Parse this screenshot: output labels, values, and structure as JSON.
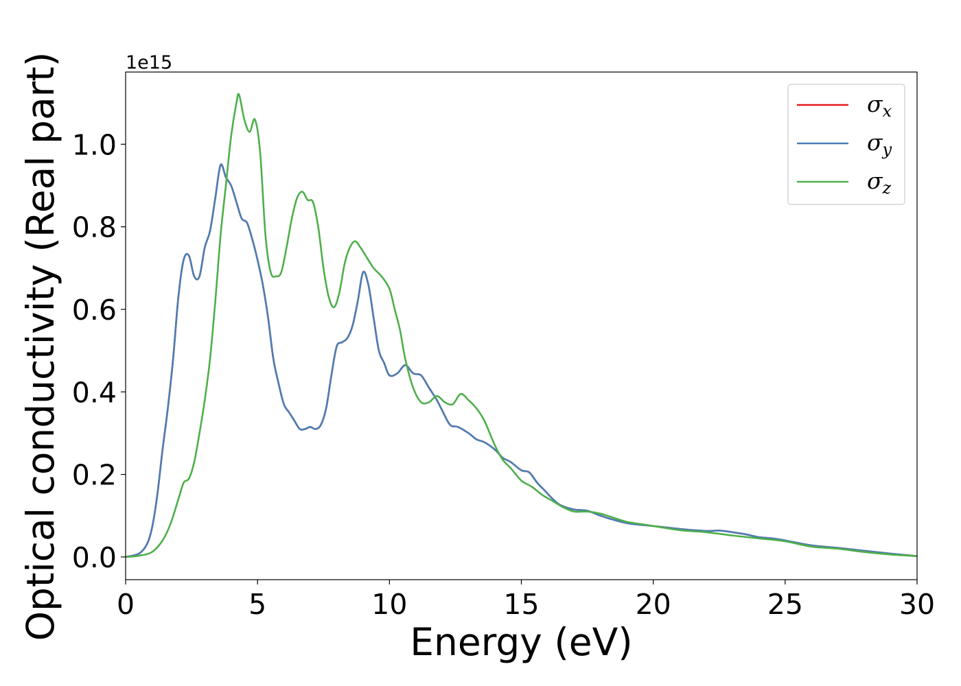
{
  "chart_data": {
    "type": "line",
    "xlabel": "Energy (eV)",
    "ylabel": "Optical conductivity (Real part)",
    "offset_text": "1e15",
    "xlim": [
      0,
      30
    ],
    "ylim": [
      -0.055,
      1.175
    ],
    "xticks": [
      0,
      5,
      10,
      15,
      20,
      25,
      30
    ],
    "xtick_labels": [
      "0",
      "5",
      "10",
      "15",
      "20",
      "25",
      "30"
    ],
    "yticks": [
      0.0,
      0.2,
      0.4,
      0.6,
      0.8,
      1.0
    ],
    "ytick_labels": [
      "0.0",
      "0.2",
      "0.4",
      "0.6",
      "0.8",
      "1.0"
    ],
    "grid": false,
    "legend_position": "upper right",
    "series": [
      {
        "name": "σx",
        "symbol": "σ",
        "subscript": "x",
        "color": "#e41a1c",
        "x": [
          0,
          0.5,
          0.8,
          1.0,
          1.2,
          1.4,
          1.6,
          1.8,
          2.0,
          2.2,
          2.4,
          2.6,
          2.8,
          3.0,
          3.2,
          3.4,
          3.6,
          3.8,
          4.0,
          4.2,
          4.4,
          4.6,
          4.8,
          5.0,
          5.2,
          5.4,
          5.6,
          5.8,
          6.0,
          6.2,
          6.4,
          6.6,
          6.8,
          7.0,
          7.2,
          7.4,
          7.6,
          7.8,
          8.0,
          8.2,
          8.4,
          8.6,
          8.8,
          9.0,
          9.2,
          9.4,
          9.6,
          9.8,
          10.0,
          10.3,
          10.6,
          10.9,
          11.2,
          11.5,
          11.8,
          12.0,
          12.3,
          12.6,
          13.0,
          13.3,
          13.6,
          14.0,
          14.3,
          14.6,
          15.0,
          15.3,
          15.6,
          15.9,
          16.2,
          16.5,
          17.0,
          17.5,
          18.0,
          18.5,
          19.0,
          19.5,
          20.0,
          21.0,
          22.0,
          22.5,
          23.0,
          23.5,
          24.0,
          24.5,
          25.0,
          26.0,
          27.0,
          28.0,
          29.0,
          30.0
        ],
        "values": [
          0.0,
          0.008,
          0.03,
          0.07,
          0.15,
          0.26,
          0.36,
          0.48,
          0.63,
          0.72,
          0.73,
          0.68,
          0.68,
          0.75,
          0.79,
          0.87,
          0.95,
          0.92,
          0.9,
          0.86,
          0.82,
          0.81,
          0.77,
          0.72,
          0.66,
          0.58,
          0.48,
          0.42,
          0.37,
          0.35,
          0.33,
          0.31,
          0.31,
          0.315,
          0.31,
          0.32,
          0.36,
          0.44,
          0.51,
          0.52,
          0.53,
          0.56,
          0.62,
          0.69,
          0.66,
          0.58,
          0.5,
          0.47,
          0.44,
          0.445,
          0.465,
          0.445,
          0.44,
          0.41,
          0.38,
          0.355,
          0.32,
          0.315,
          0.3,
          0.285,
          0.278,
          0.26,
          0.24,
          0.23,
          0.21,
          0.205,
          0.18,
          0.16,
          0.14,
          0.125,
          0.115,
          0.112,
          0.1,
          0.09,
          0.082,
          0.078,
          0.075,
          0.068,
          0.063,
          0.064,
          0.06,
          0.055,
          0.048,
          0.045,
          0.04,
          0.028,
          0.022,
          0.015,
          0.008,
          0.002
        ]
      },
      {
        "name": "σy",
        "symbol": "σ",
        "subscript": "y",
        "color": "#4a7fb5",
        "x": [
          0,
          0.5,
          0.8,
          1.0,
          1.2,
          1.4,
          1.6,
          1.8,
          2.0,
          2.2,
          2.4,
          2.6,
          2.8,
          3.0,
          3.2,
          3.4,
          3.6,
          3.8,
          4.0,
          4.2,
          4.4,
          4.6,
          4.8,
          5.0,
          5.2,
          5.4,
          5.6,
          5.8,
          6.0,
          6.2,
          6.4,
          6.6,
          6.8,
          7.0,
          7.2,
          7.4,
          7.6,
          7.8,
          8.0,
          8.2,
          8.4,
          8.6,
          8.8,
          9.0,
          9.2,
          9.4,
          9.6,
          9.8,
          10.0,
          10.3,
          10.6,
          10.9,
          11.2,
          11.5,
          11.8,
          12.0,
          12.3,
          12.6,
          13.0,
          13.3,
          13.6,
          14.0,
          14.3,
          14.6,
          15.0,
          15.3,
          15.6,
          15.9,
          16.2,
          16.5,
          17.0,
          17.5,
          18.0,
          18.5,
          19.0,
          19.5,
          20.0,
          21.0,
          22.0,
          22.5,
          23.0,
          23.5,
          24.0,
          24.5,
          25.0,
          26.0,
          27.0,
          28.0,
          29.0,
          30.0
        ],
        "values": [
          0.0,
          0.008,
          0.03,
          0.07,
          0.15,
          0.26,
          0.36,
          0.48,
          0.63,
          0.72,
          0.73,
          0.68,
          0.68,
          0.75,
          0.79,
          0.87,
          0.95,
          0.92,
          0.9,
          0.86,
          0.82,
          0.81,
          0.77,
          0.72,
          0.66,
          0.58,
          0.48,
          0.42,
          0.37,
          0.35,
          0.33,
          0.31,
          0.31,
          0.315,
          0.31,
          0.32,
          0.36,
          0.44,
          0.51,
          0.52,
          0.53,
          0.56,
          0.62,
          0.69,
          0.66,
          0.58,
          0.5,
          0.47,
          0.44,
          0.445,
          0.465,
          0.445,
          0.44,
          0.41,
          0.38,
          0.355,
          0.32,
          0.315,
          0.3,
          0.285,
          0.278,
          0.26,
          0.24,
          0.23,
          0.21,
          0.205,
          0.18,
          0.16,
          0.14,
          0.125,
          0.115,
          0.112,
          0.1,
          0.09,
          0.082,
          0.078,
          0.075,
          0.068,
          0.063,
          0.064,
          0.06,
          0.055,
          0.048,
          0.045,
          0.04,
          0.028,
          0.022,
          0.015,
          0.008,
          0.002
        ]
      },
      {
        "name": "σz",
        "symbol": "σ",
        "subscript": "z",
        "color": "#4daf4a",
        "x": [
          0,
          0.5,
          1.0,
          1.4,
          1.7,
          2.0,
          2.2,
          2.4,
          2.6,
          2.8,
          3.0,
          3.2,
          3.4,
          3.6,
          3.8,
          4.0,
          4.2,
          4.3,
          4.5,
          4.7,
          4.9,
          5.1,
          5.3,
          5.5,
          5.7,
          5.9,
          6.1,
          6.3,
          6.5,
          6.7,
          6.9,
          7.1,
          7.3,
          7.5,
          7.7,
          7.9,
          8.1,
          8.3,
          8.5,
          8.7,
          8.9,
          9.1,
          9.4,
          9.7,
          10.0,
          10.2,
          10.4,
          10.6,
          10.9,
          11.2,
          11.5,
          11.8,
          12.1,
          12.4,
          12.7,
          13.0,
          13.3,
          13.6,
          14.0,
          14.3,
          14.6,
          15.0,
          15.4,
          15.8,
          16.2,
          16.6,
          17.0,
          17.5,
          18.0,
          18.5,
          19.0,
          19.5,
          20.0,
          21.0,
          22.0,
          23.0,
          24.0,
          25.0,
          26.0,
          27.0,
          28.0,
          29.0,
          30.0
        ],
        "values": [
          0.0,
          0.003,
          0.012,
          0.04,
          0.08,
          0.14,
          0.18,
          0.19,
          0.23,
          0.3,
          0.38,
          0.48,
          0.62,
          0.78,
          0.9,
          1.02,
          1.1,
          1.12,
          1.06,
          1.03,
          1.06,
          0.98,
          0.78,
          0.69,
          0.68,
          0.69,
          0.75,
          0.82,
          0.87,
          0.885,
          0.865,
          0.86,
          0.8,
          0.7,
          0.63,
          0.605,
          0.64,
          0.71,
          0.75,
          0.765,
          0.75,
          0.73,
          0.7,
          0.68,
          0.65,
          0.6,
          0.55,
          0.48,
          0.41,
          0.375,
          0.375,
          0.39,
          0.375,
          0.37,
          0.395,
          0.38,
          0.36,
          0.33,
          0.27,
          0.235,
          0.215,
          0.185,
          0.17,
          0.15,
          0.135,
          0.12,
          0.11,
          0.11,
          0.105,
          0.095,
          0.085,
          0.08,
          0.075,
          0.065,
          0.06,
          0.052,
          0.045,
          0.038,
          0.025,
          0.02,
          0.012,
          0.006,
          0.002
        ]
      }
    ]
  }
}
